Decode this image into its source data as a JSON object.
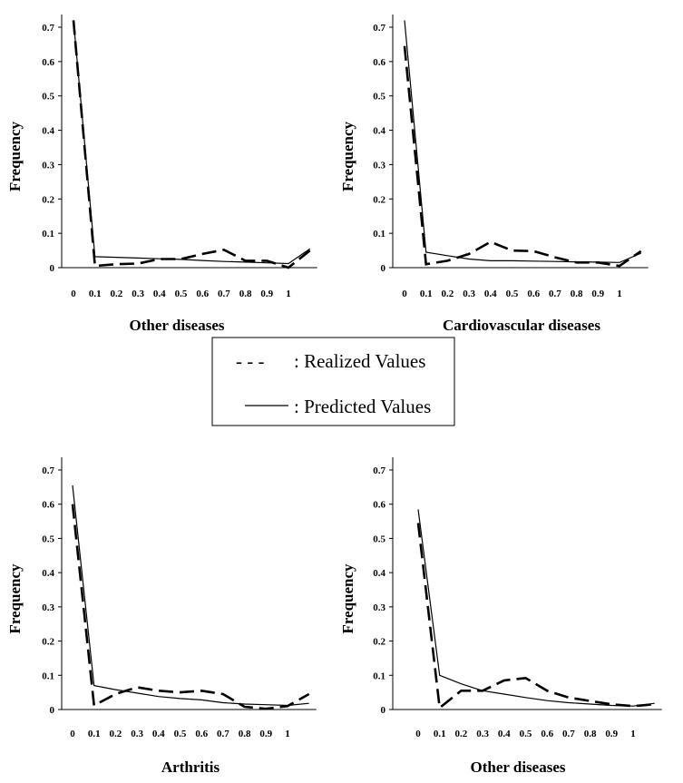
{
  "legend": {
    "realized_symbol": "- - - ",
    "realized_label": ": Realized Values",
    "predicted_label": ": Predicted Values"
  },
  "chart_data": [
    {
      "type": "line",
      "title": "Other diseases",
      "ylabel": "Frequency",
      "x": [
        0,
        0.1,
        0.2,
        0.3,
        0.4,
        0.5,
        0.6,
        0.7,
        0.8,
        0.9,
        1,
        1.1
      ],
      "xtick_labels": [
        "0",
        "0.1",
        "0.2",
        "0.3",
        "0.4",
        "0.5",
        "0.6",
        "0.7",
        "0.8",
        "0.9",
        "1"
      ],
      "ytick_labels": [
        "0",
        "0.1",
        "0.2",
        "0.3",
        "0.4",
        "0.5",
        "0.6",
        "0.7"
      ],
      "ylim": [
        0,
        0.7
      ],
      "series": [
        {
          "name": "Realized Values",
          "style": "dashed",
          "values": [
            0.72,
            0.005,
            0.01,
            0.012,
            0.025,
            0.025,
            0.04,
            0.052,
            0.02,
            0.02,
            0.0,
            0.05
          ]
        },
        {
          "name": "Predicted Values",
          "style": "solid",
          "values": [
            0.72,
            0.032,
            0.03,
            0.028,
            0.026,
            0.024,
            0.021,
            0.018,
            0.016,
            0.014,
            0.012,
            0.055
          ]
        }
      ]
    },
    {
      "type": "line",
      "title": "Cardiovascular diseases",
      "ylabel": "Frequency",
      "x": [
        0,
        0.1,
        0.2,
        0.3,
        0.4,
        0.5,
        0.6,
        0.7,
        0.8,
        0.9,
        1,
        1.1
      ],
      "xtick_labels": [
        "0",
        "0.1",
        "0.2",
        "0.3",
        "0.4",
        "0.5",
        "0.6",
        "0.7",
        "0.8",
        "0.9",
        "1"
      ],
      "ytick_labels": [
        "0",
        "0.1",
        "0.2",
        "0.3",
        "0.4",
        "0.5",
        "0.6",
        "0.7"
      ],
      "ylim": [
        0,
        0.7
      ],
      "series": [
        {
          "name": "Realized Values",
          "style": "dashed",
          "values": [
            0.645,
            0.01,
            0.02,
            0.04,
            0.075,
            0.05,
            0.048,
            0.03,
            0.015,
            0.015,
            0.005,
            0.048
          ]
        },
        {
          "name": "Predicted Values",
          "style": "solid",
          "values": [
            0.72,
            0.045,
            0.035,
            0.025,
            0.02,
            0.02,
            0.019,
            0.018,
            0.017,
            0.016,
            0.015,
            0.042
          ]
        }
      ]
    },
    {
      "type": "line",
      "title": "Arthritis",
      "ylabel": "Frequency",
      "x": [
        0,
        0.1,
        0.2,
        0.3,
        0.4,
        0.5,
        0.6,
        0.7,
        0.8,
        0.9,
        1,
        1.1
      ],
      "xtick_labels": [
        "0",
        "0.1",
        "0.2",
        "0.3",
        "0.4",
        "0.5",
        "0.6",
        "0.7",
        "0.8",
        "0.9",
        "1"
      ],
      "ytick_labels": [
        "0",
        "0.1",
        "0.2",
        "0.3",
        "0.4",
        "0.5",
        "0.6",
        "0.7"
      ],
      "ylim": [
        0,
        0.7
      ],
      "series": [
        {
          "name": "Realized Values",
          "style": "dashed",
          "values": [
            0.6,
            0.012,
            0.045,
            0.065,
            0.055,
            0.05,
            0.055,
            0.045,
            0.008,
            0.002,
            0.01,
            0.045
          ]
        },
        {
          "name": "Predicted Values",
          "style": "solid",
          "values": [
            0.655,
            0.07,
            0.058,
            0.048,
            0.038,
            0.032,
            0.028,
            0.02,
            0.016,
            0.014,
            0.012,
            0.018
          ]
        }
      ]
    },
    {
      "type": "line",
      "title": "Other diseases",
      "ylabel": "Frequency",
      "x": [
        0,
        0.1,
        0.2,
        0.3,
        0.4,
        0.5,
        0.6,
        0.7,
        0.8,
        0.9,
        1,
        1.1
      ],
      "xtick_labels": [
        "0",
        "0.1",
        "0.2",
        "0.3",
        "0.4",
        "0.5",
        "0.6",
        "0.7",
        "0.8",
        "0.9",
        "1"
      ],
      "ytick_labels": [
        "0",
        "0.1",
        "0.2",
        "0.3",
        "0.4",
        "0.5",
        "0.6",
        "0.7"
      ],
      "ylim": [
        0,
        0.7
      ],
      "series": [
        {
          "name": "Realized Values",
          "style": "dashed",
          "values": [
            0.545,
            0.005,
            0.055,
            0.055,
            0.085,
            0.092,
            0.055,
            0.035,
            0.025,
            0.015,
            0.01,
            0.015
          ]
        },
        {
          "name": "Predicted Values",
          "style": "solid",
          "values": [
            0.585,
            0.1,
            0.075,
            0.055,
            0.045,
            0.035,
            0.026,
            0.02,
            0.016,
            0.012,
            0.01,
            0.018
          ]
        }
      ]
    }
  ]
}
